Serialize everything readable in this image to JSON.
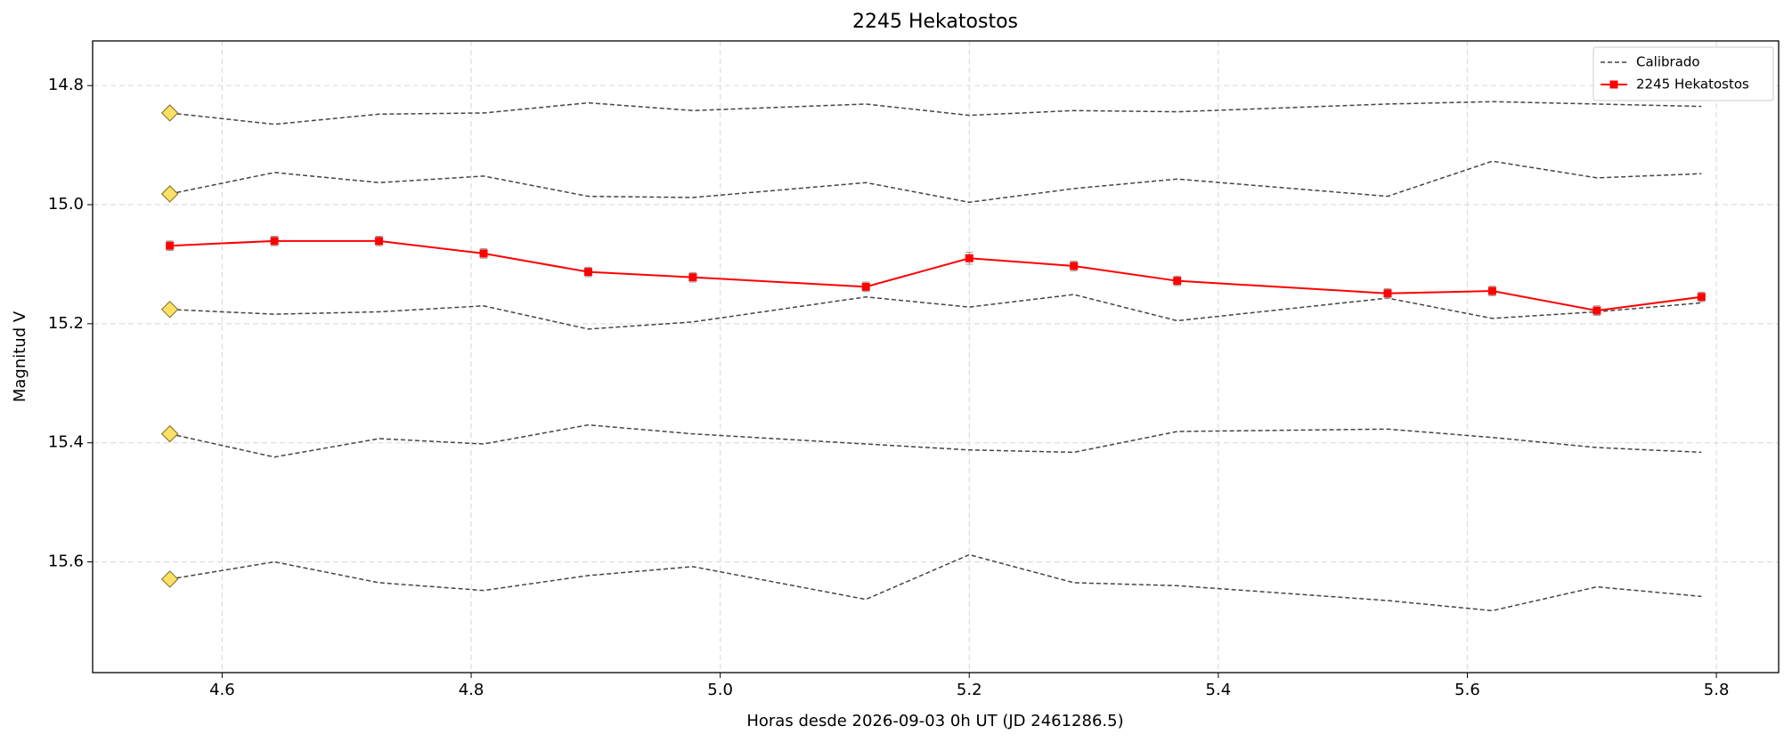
{
  "chart_data": {
    "type": "line",
    "title": "2245 Hekatostos",
    "xlabel": "Horas desde 2026-09-03 0h UT (JD 2461286.5)",
    "ylabel": "Magnitud V",
    "x": [
      4.558,
      4.642,
      4.726,
      4.81,
      4.894,
      4.978,
      5.117,
      5.2,
      5.284,
      5.367,
      5.536,
      5.62,
      5.704,
      5.788
    ],
    "series": [
      {
        "name": "Calibrado",
        "color": "#444444",
        "dashed": true,
        "start_marker_color": "#ffe066",
        "lines": [
          [
            14.846,
            14.865,
            14.848,
            14.846,
            14.829,
            14.842,
            14.831,
            14.85,
            14.842,
            14.844,
            14.831,
            14.827,
            14.831,
            14.835
          ],
          [
            14.982,
            14.946,
            14.963,
            14.952,
            14.986,
            14.988,
            14.963,
            14.996,
            14.973,
            14.957,
            14.986,
            14.927,
            14.955,
            14.948
          ],
          [
            15.176,
            15.184,
            15.18,
            15.17,
            15.209,
            15.197,
            15.155,
            15.172,
            15.151,
            15.195,
            15.157,
            15.191,
            15.18,
            15.165
          ],
          [
            15.385,
            15.424,
            15.393,
            15.402,
            15.37,
            15.385,
            15.402,
            15.412,
            15.416,
            15.381,
            15.377,
            15.391,
            15.408,
            15.416
          ],
          [
            15.629,
            15.6,
            15.635,
            15.648,
            15.623,
            15.608,
            15.663,
            15.588,
            15.635,
            15.64,
            15.665,
            15.682,
            15.642,
            15.658
          ]
        ]
      },
      {
        "name": "2245 Hekatostos",
        "color": "#ff0000",
        "dashed": false,
        "values": [
          15.069,
          15.061,
          15.061,
          15.082,
          15.113,
          15.122,
          15.138,
          15.09,
          15.103,
          15.128,
          15.149,
          15.145,
          15.178,
          15.155
        ],
        "errors": [
          0.008,
          0.008,
          0.008,
          0.008,
          0.008,
          0.008,
          0.008,
          0.01,
          0.008,
          0.008,
          0.008,
          0.008,
          0.008,
          0.008
        ]
      }
    ],
    "xlim": [
      4.496,
      5.85
    ],
    "ylim": [
      14.725,
      15.786
    ],
    "y_inverted": true,
    "xticks": [
      4.6,
      4.8,
      {
        "value": 5,
        "label": "5.0"
      },
      5.2,
      5.4,
      5.6,
      5.8
    ],
    "yticks": [
      14.8,
      {
        "value": 15,
        "label": "15.0"
      },
      15.2,
      15.4,
      15.6
    ],
    "grid": true,
    "legend": "upper right"
  }
}
